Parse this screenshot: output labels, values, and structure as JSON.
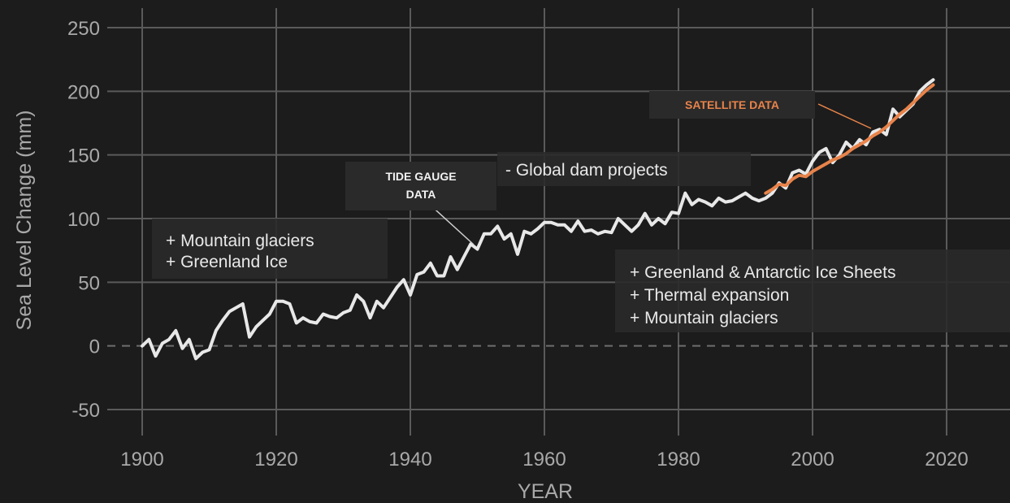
{
  "colors": {
    "background": "#1c1c1c",
    "grid": "#5a5a5a",
    "tide_line": "#e8e8e8",
    "satellite_line": "#e8834a",
    "box_fill": "#2a2a2a",
    "text": "#e9e9e9",
    "tick_text": "#a9a9a9"
  },
  "chart_data": {
    "type": "line",
    "title": "",
    "xlabel": "YEAR",
    "ylabel": "Sea Level Change (mm)",
    "xlim": [
      1900,
      2030
    ],
    "ylim": [
      -75,
      255
    ],
    "x_ticks": [
      1900,
      1920,
      1940,
      1960,
      1980,
      2000,
      2020
    ],
    "y_ticks": [
      -50,
      0,
      50,
      100,
      150,
      200,
      250
    ],
    "grid": true,
    "zero_line": "dashed",
    "series": [
      {
        "name": "TIDE GAUGE DATA",
        "x": [
          1900,
          1901,
          1902,
          1903,
          1904,
          1905,
          1906,
          1907,
          1908,
          1909,
          1910,
          1911,
          1912,
          1913,
          1914,
          1915,
          1916,
          1917,
          1918,
          1919,
          1920,
          1921,
          1922,
          1923,
          1924,
          1925,
          1926,
          1927,
          1928,
          1929,
          1930,
          1931,
          1932,
          1933,
          1934,
          1935,
          1936,
          1937,
          1938,
          1939,
          1940,
          1941,
          1942,
          1943,
          1944,
          1945,
          1946,
          1947,
          1948,
          1949,
          1950,
          1951,
          1952,
          1953,
          1954,
          1955,
          1956,
          1957,
          1958,
          1959,
          1960,
          1961,
          1962,
          1963,
          1964,
          1965,
          1966,
          1967,
          1968,
          1969,
          1970,
          1971,
          1972,
          1973,
          1974,
          1975,
          1976,
          1977,
          1978,
          1979,
          1980,
          1981,
          1982,
          1983,
          1984,
          1985,
          1986,
          1987,
          1988,
          1989,
          1990,
          1991,
          1992,
          1993,
          1994,
          1995,
          1996,
          1997,
          1998,
          1999,
          2000,
          2001,
          2002,
          2003,
          2004,
          2005,
          2006,
          2007,
          2008,
          2009,
          2010,
          2011,
          2012,
          2013,
          2014,
          2015,
          2016,
          2017,
          2018
        ],
        "y": [
          0,
          5,
          -8,
          2,
          5,
          12,
          -2,
          5,
          -10,
          -5,
          -3,
          12,
          20,
          27,
          30,
          33,
          7,
          15,
          20,
          25,
          35,
          35,
          33,
          18,
          22,
          19,
          18,
          25,
          23,
          22,
          26,
          28,
          40,
          35,
          22,
          35,
          30,
          38,
          46,
          52,
          40,
          56,
          58,
          65,
          55,
          55,
          70,
          60,
          70,
          80,
          76,
          88,
          88,
          94,
          84,
          88,
          72,
          90,
          88,
          92,
          97,
          97,
          95,
          95,
          90,
          98,
          90,
          91,
          88,
          90,
          89,
          100,
          95,
          90,
          95,
          104,
          95,
          100,
          96,
          105,
          104,
          120,
          111,
          115,
          113,
          110,
          116,
          113,
          114,
          117,
          120,
          116,
          114,
          116,
          120,
          128,
          124,
          136,
          138,
          135,
          145,
          152,
          155,
          144,
          150,
          160,
          155,
          162,
          158,
          168,
          170,
          166,
          186,
          180,
          185,
          190,
          200,
          205,
          209
        ]
      },
      {
        "name": "SATELLITE DATA",
        "x": [
          1993,
          1994,
          1995,
          1996,
          1997,
          1998,
          1999,
          2000,
          2001,
          2002,
          2003,
          2004,
          2005,
          2006,
          2007,
          2008,
          2009,
          2010,
          2011,
          2012,
          2013,
          2014,
          2015,
          2016,
          2017,
          2018
        ],
        "y": [
          120,
          123,
          127,
          126,
          131,
          134,
          133,
          137,
          140,
          143,
          146,
          148,
          151,
          155,
          158,
          161,
          165,
          168,
          172,
          177,
          182,
          186,
          191,
          196,
          201,
          205
        ]
      }
    ],
    "annotations": [
      {
        "lines": [
          "+ Mountain glaciers",
          "+ Greenland Ice"
        ]
      },
      {
        "lines": [
          "- Global dam projects"
        ]
      },
      {
        "lines": [
          "+ Greenland & Antarctic Ice Sheets",
          "+ Thermal expansion",
          "+ Mountain glaciers"
        ]
      }
    ],
    "series_labels": [
      {
        "lines": [
          "TIDE GAUGE",
          "DATA"
        ],
        "series": "TIDE GAUGE DATA"
      },
      {
        "lines": [
          "SATELLITE DATA"
        ],
        "series": "SATELLITE DATA"
      }
    ]
  }
}
